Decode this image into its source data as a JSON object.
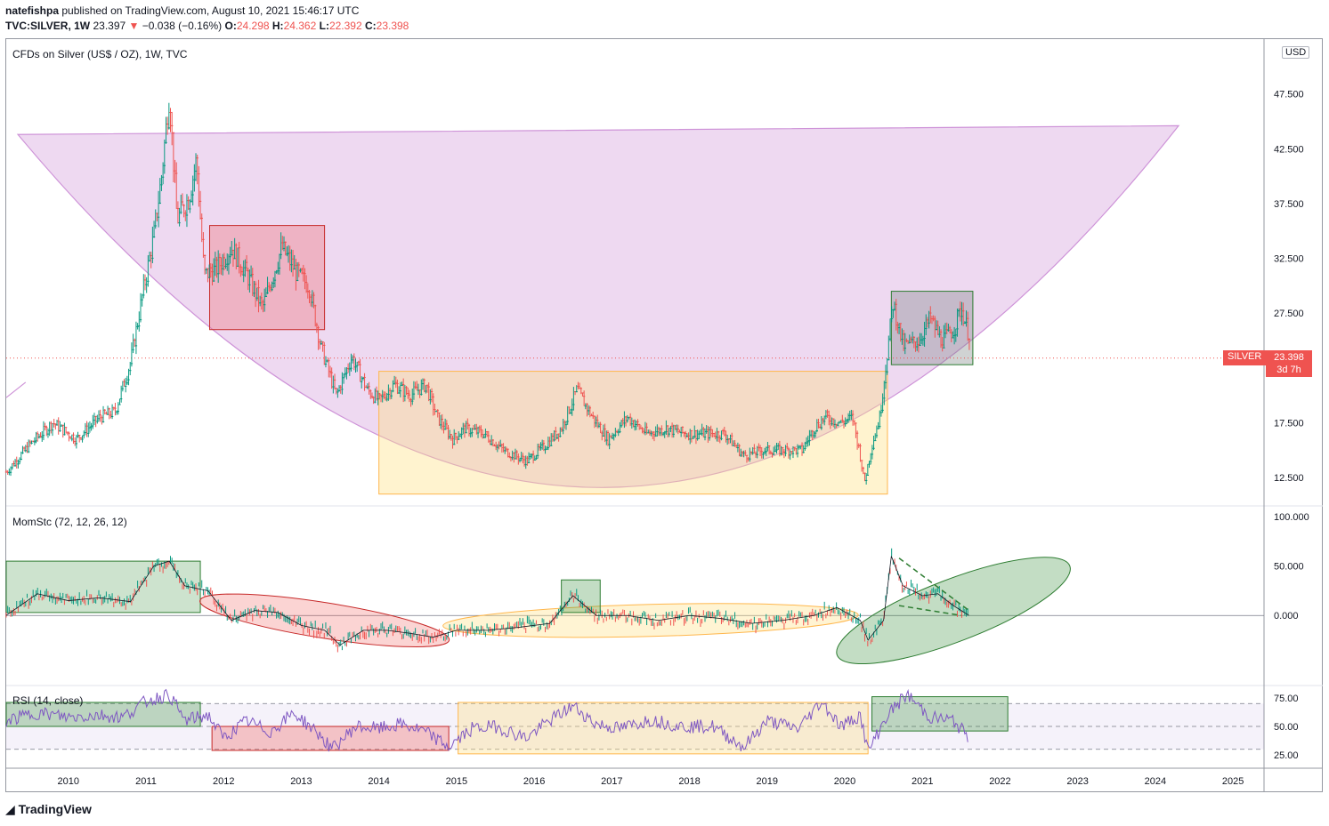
{
  "header": {
    "publisher": "natefishpa",
    "published_text": "published on TradingView.com, August 10, 2021 15:46:17 UTC",
    "symbol": "TVC:SILVER, 1W",
    "last": "23.397",
    "change_arrow": "▼",
    "change": "−0.038 (−0.16%)",
    "o_label": "O:",
    "o_val": "24.298",
    "h_label": "H:",
    "h_val": "24.362",
    "l_label": "L:",
    "l_val": "22.392",
    "c_label": "C:",
    "c_val": "23.398"
  },
  "panes": {
    "main_title": "CFDs on Silver (US$ / OZ), 1W, TVC",
    "usd_label": "USD",
    "price_label_symbol": "SILVER",
    "price_label_value": "23.398",
    "price_label_countdown": "3d 7h",
    "mom_title": "MomStc (72, 12, 26, 12)",
    "rsi_title": "RSI (14, close)"
  },
  "logo_text": "TradingView",
  "colors": {
    "up": "#26a69a",
    "down": "#ef5350",
    "green_bar": "#089981",
    "rsi_line": "#7e57c2",
    "bowl": "#ce93d8"
  },
  "chart_data": [
    {
      "type": "candlestick",
      "title": "CFDs on Silver (US$ / OZ), 1W, TVC",
      "ylim": [
        10,
        52.5
      ],
      "yticks": [
        "47.500",
        "42.500",
        "37.500",
        "32.500",
        "27.500",
        "17.500",
        "12.500"
      ],
      "xticks": [
        "2010",
        "2011",
        "2012",
        "2013",
        "2014",
        "2015",
        "2016",
        "2017",
        "2018",
        "2019",
        "2020",
        "2021",
        "2022",
        "2023",
        "2024",
        "2025"
      ],
      "x_range": [
        2009.2,
        2025.4
      ],
      "last_price": 23.398,
      "close_path": [
        [
          2009.2,
          13.0
        ],
        [
          2009.5,
          15.5
        ],
        [
          2009.8,
          17.5
        ],
        [
          2010.1,
          16.0
        ],
        [
          2010.4,
          18.0
        ],
        [
          2010.6,
          18.5
        ],
        [
          2010.8,
          23.0
        ],
        [
          2010.95,
          29.0
        ],
        [
          2011.1,
          34.5
        ],
        [
          2011.2,
          40.0
        ],
        [
          2011.3,
          47.5
        ],
        [
          2011.4,
          36.0
        ],
        [
          2011.55,
          38.0
        ],
        [
          2011.65,
          41.5
        ],
        [
          2011.75,
          31.0
        ],
        [
          2011.9,
          31.5
        ],
        [
          2012.1,
          33.5
        ],
        [
          2012.3,
          31.0
        ],
        [
          2012.5,
          28.0
        ],
        [
          2012.75,
          33.5
        ],
        [
          2012.95,
          31.0
        ],
        [
          2013.1,
          30.0
        ],
        [
          2013.25,
          24.5
        ],
        [
          2013.45,
          20.0
        ],
        [
          2013.65,
          23.5
        ],
        [
          2013.85,
          20.5
        ],
        [
          2014.0,
          19.5
        ],
        [
          2014.2,
          21.0
        ],
        [
          2014.4,
          20.0
        ],
        [
          2014.6,
          21.0
        ],
        [
          2014.75,
          18.0
        ],
        [
          2014.95,
          16.0
        ],
        [
          2015.1,
          17.0
        ],
        [
          2015.35,
          16.5
        ],
        [
          2015.6,
          15.0
        ],
        [
          2015.9,
          14.0
        ],
        [
          2016.15,
          15.5
        ],
        [
          2016.35,
          17.0
        ],
        [
          2016.55,
          20.5
        ],
        [
          2016.75,
          18.0
        ],
        [
          2016.95,
          16.0
        ],
        [
          2017.2,
          18.0
        ],
        [
          2017.45,
          16.5
        ],
        [
          2017.7,
          17.0
        ],
        [
          2017.95,
          16.5
        ],
        [
          2018.2,
          16.5
        ],
        [
          2018.45,
          16.5
        ],
        [
          2018.7,
          14.5
        ],
        [
          2018.95,
          15.0
        ],
        [
          2019.2,
          15.0
        ],
        [
          2019.45,
          15.0
        ],
        [
          2019.6,
          17.0
        ],
        [
          2019.75,
          18.0
        ],
        [
          2019.95,
          17.5
        ],
        [
          2020.1,
          18.0
        ],
        [
          2020.2,
          14.5
        ],
        [
          2020.25,
          12.0
        ],
        [
          2020.35,
          15.5
        ],
        [
          2020.45,
          18.0
        ],
        [
          2020.55,
          24.0
        ],
        [
          2020.62,
          28.5
        ],
        [
          2020.75,
          24.5
        ],
        [
          2020.95,
          25.0
        ],
        [
          2021.1,
          27.0
        ],
        [
          2021.25,
          25.0
        ],
        [
          2021.4,
          26.0
        ],
        [
          2021.5,
          28.0
        ],
        [
          2021.6,
          25.5
        ],
        [
          2021.62,
          23.4
        ]
      ],
      "series": [
        {
          "name": "Silver weekly candles",
          "values_ref": "close_path"
        }
      ]
    },
    {
      "type": "line",
      "title": "MomStc (72, 12, 26, 12)",
      "ylim": [
        -70,
        110
      ],
      "yticks": [
        "100.000",
        "50.000",
        "0.000"
      ],
      "x": [
        2009.2,
        2009.6,
        2010.0,
        2010.4,
        2010.8,
        2011.1,
        2011.3,
        2011.5,
        2011.8,
        2012.1,
        2012.4,
        2012.7,
        2013.0,
        2013.3,
        2013.5,
        2013.8,
        2014.1,
        2014.4,
        2014.7,
        2015.0,
        2015.4,
        2015.8,
        2016.2,
        2016.5,
        2016.8,
        2017.2,
        2017.6,
        2018.0,
        2018.4,
        2018.8,
        2019.2,
        2019.6,
        2019.9,
        2020.2,
        2020.3,
        2020.5,
        2020.6,
        2020.75,
        2021.0,
        2021.2,
        2021.4,
        2021.6
      ],
      "values": [
        0,
        22,
        15,
        18,
        14,
        50,
        55,
        30,
        25,
        -5,
        5,
        3,
        -10,
        -15,
        -30,
        -15,
        -15,
        -18,
        -22,
        -15,
        -15,
        -12,
        -8,
        20,
        0,
        0,
        -5,
        0,
        -3,
        -8,
        -5,
        0,
        8,
        -5,
        -25,
        -5,
        60,
        30,
        20,
        22,
        10,
        0
      ]
    },
    {
      "type": "line",
      "title": "RSI (14, close)",
      "ylim": [
        15,
        85
      ],
      "yticks": [
        "75.00",
        "50.00",
        "25.00"
      ],
      "x": [
        2009.2,
        2009.6,
        2010.0,
        2010.4,
        2010.7,
        2011.0,
        2011.3,
        2011.5,
        2011.8,
        2012.0,
        2012.3,
        2012.6,
        2012.9,
        2013.2,
        2013.4,
        2013.7,
        2014.0,
        2014.3,
        2014.6,
        2014.9,
        2015.2,
        2015.5,
        2015.9,
        2016.2,
        2016.5,
        2016.8,
        2017.1,
        2017.5,
        2017.9,
        2018.3,
        2018.7,
        2019.0,
        2019.4,
        2019.7,
        2019.95,
        2020.2,
        2020.3,
        2020.55,
        2020.8,
        2021.1,
        2021.4,
        2021.6
      ],
      "values": [
        55,
        62,
        58,
        60,
        58,
        72,
        78,
        55,
        60,
        40,
        55,
        45,
        62,
        45,
        30,
        50,
        48,
        52,
        45,
        32,
        48,
        50,
        40,
        55,
        68,
        52,
        48,
        56,
        50,
        50,
        32,
        55,
        48,
        72,
        50,
        60,
        28,
        60,
        78,
        58,
        55,
        40
      ],
      "guides": [
        70,
        50,
        30
      ]
    }
  ]
}
